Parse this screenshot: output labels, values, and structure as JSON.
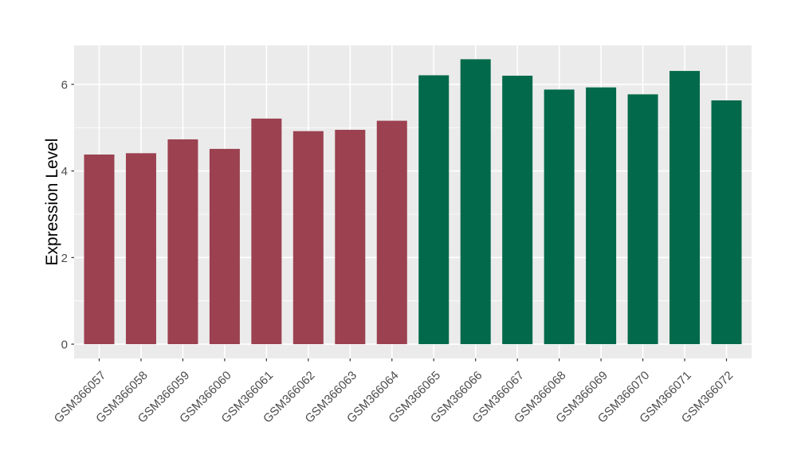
{
  "figure": {
    "background": "#FFFFFF"
  },
  "chart_data": {
    "type": "bar",
    "title": "",
    "xlabel": "",
    "ylabel": "Expression Level",
    "categories": [
      "GSM366057",
      "GSM366058",
      "GSM366059",
      "GSM366060",
      "GSM366061",
      "GSM366062",
      "GSM366063",
      "GSM366064",
      "GSM366065",
      "GSM366066",
      "GSM366067",
      "GSM366068",
      "GSM366069",
      "GSM366070",
      "GSM366071",
      "GSM366072"
    ],
    "values": [
      4.38,
      4.41,
      4.73,
      4.51,
      5.21,
      4.92,
      4.95,
      5.16,
      6.21,
      6.58,
      6.2,
      5.88,
      5.93,
      5.77,
      6.31,
      5.63
    ],
    "bar_colors": [
      "#9B4150",
      "#9B4150",
      "#9B4150",
      "#9B4150",
      "#9B4150",
      "#9B4150",
      "#9B4150",
      "#9B4150",
      "#02694A",
      "#02694A",
      "#02694A",
      "#02694A",
      "#02694A",
      "#02694A",
      "#02694A",
      "#02694A"
    ],
    "ylim": [
      -0.33,
      6.9
    ],
    "yticks": [
      0,
      2,
      4,
      6
    ],
    "ytick_labels": [
      "0",
      "2",
      "4",
      "6"
    ],
    "minor_yticks": [
      1,
      3,
      5
    ],
    "grid": true,
    "legend": "none",
    "x_label_angle_deg": -45,
    "style": {
      "panel_background": "#EBEBEB",
      "grid_color": "#FFFFFF",
      "tick_mark_color": "#333333",
      "tick_label_color": "#4D4D4D",
      "axis_title_color": "#000000"
    }
  }
}
